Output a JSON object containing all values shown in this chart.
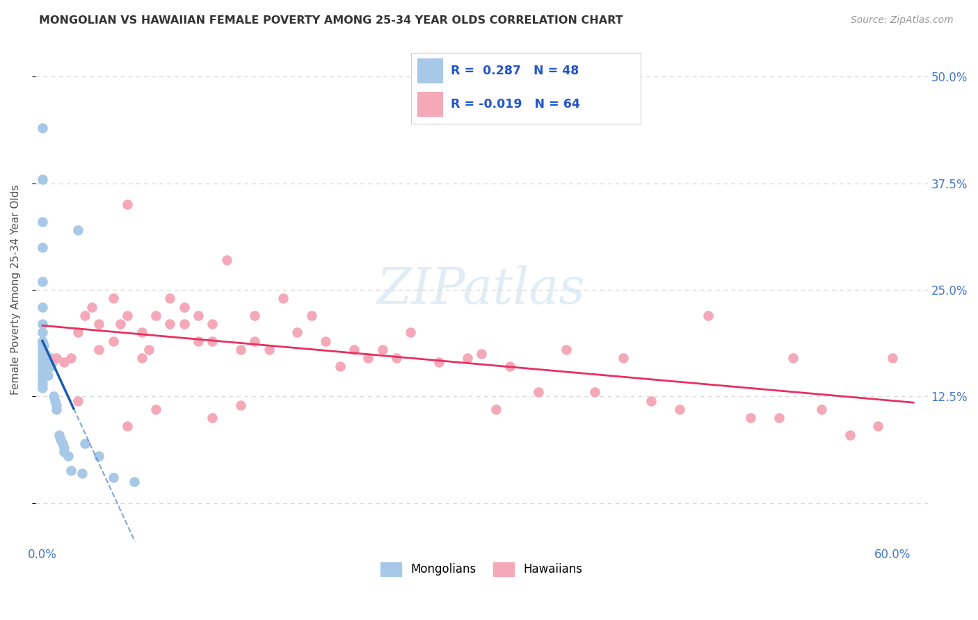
{
  "title": "MONGOLIAN VS HAWAIIAN FEMALE POVERTY AMONG 25-34 YEAR OLDS CORRELATION CHART",
  "source": "Source: ZipAtlas.com",
  "ylabel": "Female Poverty Among 25-34 Year Olds",
  "ytick_positions": [
    0.0,
    0.125,
    0.25,
    0.375,
    0.5
  ],
  "ytick_labels": [
    "",
    "12.5%",
    "25.0%",
    "37.5%",
    "50.0%"
  ],
  "xlim": [
    -0.005,
    0.625
  ],
  "ylim": [
    -0.045,
    0.545
  ],
  "mongolian_R": 0.287,
  "mongolian_N": 48,
  "hawaiian_R": -0.019,
  "hawaiian_N": 64,
  "mongolian_color": "#a8c8e8",
  "hawaiian_color": "#f4a8b8",
  "mongolian_line_color": "#1a5db0",
  "hawaiian_line_color": "#e83060",
  "background_color": "#ffffff",
  "grid_color": "#d8d8d8",
  "watermark_color": "#c8dff0",
  "mongolian_x": [
    0.0,
    0.0,
    0.0,
    0.0,
    0.0,
    0.0,
    0.0,
    0.0,
    0.0,
    0.0,
    0.0,
    0.0,
    0.0,
    0.0,
    0.0,
    0.0,
    0.0,
    0.0,
    0.0,
    0.0,
    0.001,
    0.001,
    0.002,
    0.002,
    0.003,
    0.004,
    0.005,
    0.005,
    0.006,
    0.006,
    0.007,
    0.008,
    0.009,
    0.01,
    0.01,
    0.012,
    0.013,
    0.014,
    0.015,
    0.015,
    0.018,
    0.02,
    0.025,
    0.028,
    0.03,
    0.04,
    0.05,
    0.065
  ],
  "mongolian_y": [
    0.44,
    0.38,
    0.33,
    0.3,
    0.26,
    0.23,
    0.21,
    0.2,
    0.19,
    0.185,
    0.18,
    0.175,
    0.17,
    0.165,
    0.16,
    0.155,
    0.15,
    0.145,
    0.14,
    0.135,
    0.185,
    0.175,
    0.175,
    0.165,
    0.17,
    0.15,
    0.17,
    0.165,
    0.17,
    0.16,
    0.165,
    0.125,
    0.12,
    0.115,
    0.11,
    0.08,
    0.075,
    0.07,
    0.065,
    0.06,
    0.055,
    0.038,
    0.32,
    0.035,
    0.07,
    0.055,
    0.03,
    0.025
  ],
  "hawaiian_x": [
    0.01,
    0.015,
    0.02,
    0.025,
    0.03,
    0.035,
    0.04,
    0.04,
    0.05,
    0.05,
    0.055,
    0.06,
    0.06,
    0.07,
    0.07,
    0.075,
    0.08,
    0.09,
    0.09,
    0.1,
    0.1,
    0.11,
    0.11,
    0.12,
    0.12,
    0.13,
    0.14,
    0.15,
    0.15,
    0.16,
    0.17,
    0.18,
    0.19,
    0.2,
    0.21,
    0.22,
    0.23,
    0.24,
    0.25,
    0.26,
    0.28,
    0.3,
    0.31,
    0.33,
    0.35,
    0.37,
    0.39,
    0.41,
    0.43,
    0.45,
    0.47,
    0.5,
    0.52,
    0.53,
    0.55,
    0.57,
    0.59,
    0.6,
    0.025,
    0.06,
    0.08,
    0.12,
    0.14,
    0.32
  ],
  "hawaiian_y": [
    0.17,
    0.165,
    0.17,
    0.2,
    0.22,
    0.23,
    0.21,
    0.18,
    0.24,
    0.19,
    0.21,
    0.35,
    0.22,
    0.17,
    0.2,
    0.18,
    0.22,
    0.21,
    0.24,
    0.21,
    0.23,
    0.19,
    0.22,
    0.19,
    0.21,
    0.285,
    0.18,
    0.22,
    0.19,
    0.18,
    0.24,
    0.2,
    0.22,
    0.19,
    0.16,
    0.18,
    0.17,
    0.18,
    0.17,
    0.2,
    0.165,
    0.17,
    0.175,
    0.16,
    0.13,
    0.18,
    0.13,
    0.17,
    0.12,
    0.11,
    0.22,
    0.1,
    0.1,
    0.17,
    0.11,
    0.08,
    0.09,
    0.17,
    0.12,
    0.09,
    0.11,
    0.1,
    0.115,
    0.11
  ]
}
